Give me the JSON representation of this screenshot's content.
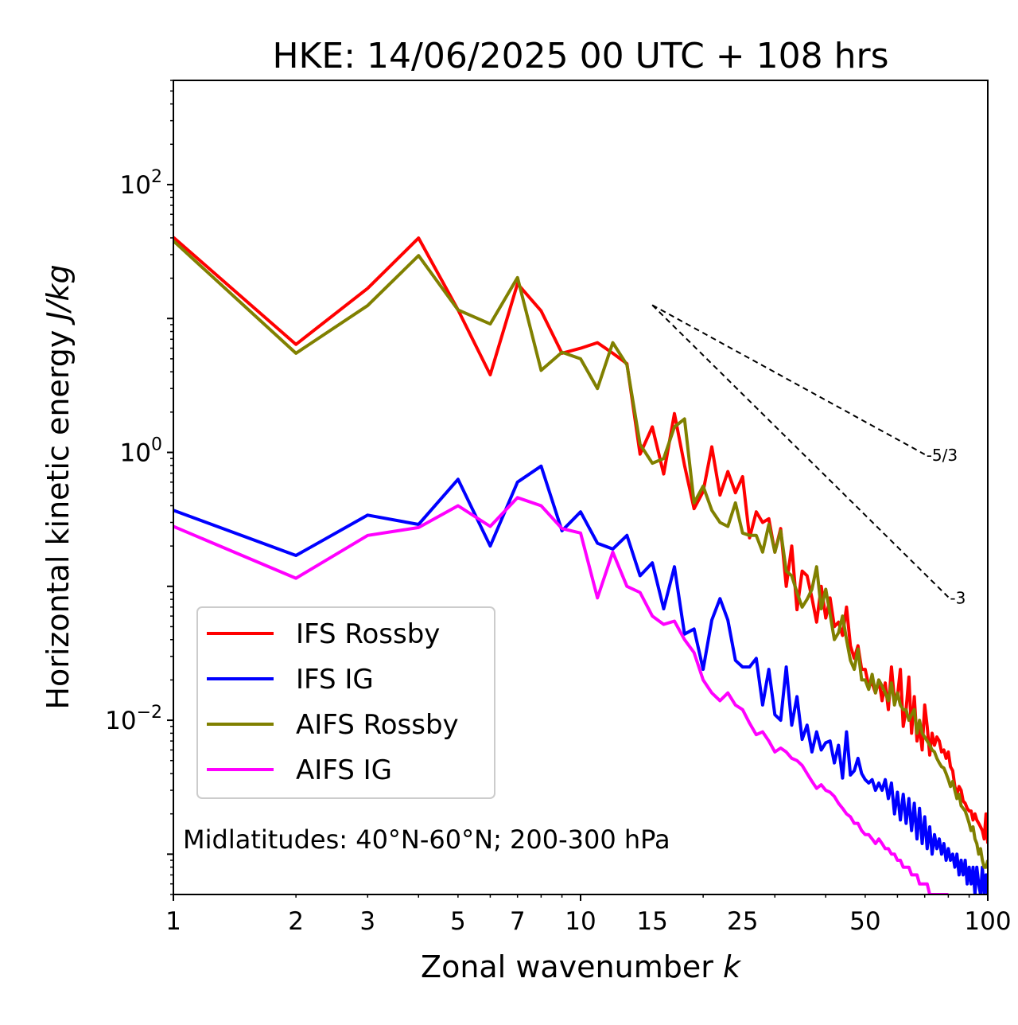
{
  "chart_data": {
    "type": "line",
    "title": "HKE: 14/06/2025 00 UTC + 108 hrs",
    "xlabel": "Zonal wavenumber",
    "xlabel_var": "k",
    "ylabel": "Horizontal kinetic energy",
    "ylabel_units": "J/kg",
    "xscale": "log",
    "yscale": "log",
    "xlim": [
      1,
      100
    ],
    "ylim": [
      0.0005,
      600
    ],
    "x_ticks": [
      1,
      2,
      3,
      5,
      7,
      10,
      15,
      25,
      50,
      100
    ],
    "x_tick_labels": [
      "1",
      "2",
      "3",
      "5",
      "7",
      "10",
      "15",
      "25",
      "50",
      "100"
    ],
    "y_ticks": [
      {
        "value": 100,
        "base": "10",
        "exp": "2"
      },
      {
        "value": 1,
        "base": "10",
        "exp": "0"
      },
      {
        "value": 0.01,
        "base": "10",
        "exp": "−2"
      }
    ],
    "grid": false,
    "legend_position": "lower-left",
    "annotation": "Midlatitudes: 40°N-60°N; 200-300 hPa",
    "reference_slopes": [
      {
        "label": "-5/3",
        "slope": -1.6667,
        "x": [
          15,
          70
        ],
        "y_start": 12.6
      },
      {
        "label": "-3",
        "slope": -3,
        "x": [
          15,
          80
        ],
        "y_start": 12.6
      }
    ],
    "series": [
      {
        "name": "IFS Rossby",
        "color": "#ff0000",
        "x": [
          1,
          2,
          3,
          4,
          5,
          6,
          7,
          8,
          9,
          10,
          11,
          12,
          13,
          14,
          15,
          16,
          17,
          18,
          19,
          20,
          21,
          22,
          23,
          24,
          25,
          26,
          27,
          28,
          29,
          30,
          31,
          32,
          33,
          34,
          35,
          36,
          37,
          38,
          39,
          40,
          41,
          42,
          43,
          44,
          45,
          46,
          47,
          48,
          49,
          50,
          51,
          52,
          53,
          54,
          55,
          56,
          57,
          58,
          59,
          60,
          61,
          62,
          63,
          64,
          65,
          66,
          67,
          68,
          69,
          70,
          71,
          72,
          73,
          74,
          75,
          76,
          77,
          78,
          79,
          80,
          81,
          82,
          83,
          84,
          85,
          86,
          87,
          88,
          89,
          90,
          91,
          92,
          93,
          94,
          95,
          96,
          97,
          98,
          99,
          100
        ],
        "y": [
          40.4,
          6.4,
          16.8,
          39.9,
          11.6,
          3.8,
          18.2,
          11.4,
          5.5,
          6.0,
          6.6,
          5.5,
          4.6,
          0.97,
          1.55,
          0.69,
          1.95,
          0.8,
          0.38,
          0.51,
          1.1,
          0.48,
          0.72,
          0.5,
          0.66,
          0.23,
          0.36,
          0.3,
          0.32,
          0.18,
          0.27,
          0.1,
          0.2,
          0.067,
          0.13,
          0.12,
          0.082,
          0.054,
          0.1,
          0.058,
          0.082,
          0.05,
          0.054,
          0.043,
          0.07,
          0.036,
          0.029,
          0.036,
          0.024,
          0.024,
          0.018,
          0.019,
          0.016,
          0.02,
          0.014,
          0.019,
          0.012,
          0.025,
          0.014,
          0.015,
          0.024,
          0.009,
          0.012,
          0.021,
          0.008,
          0.015,
          0.007,
          0.009,
          0.006,
          0.013,
          0.009,
          0.0055,
          0.008,
          0.0065,
          0.0075,
          0.007,
          0.0058,
          0.006,
          0.0052,
          0.0058,
          0.0045,
          0.0042,
          0.0032,
          0.0028,
          0.0032,
          0.003,
          0.0025,
          0.0024,
          0.0022,
          0.0021,
          0.0021,
          0.0018,
          0.002,
          0.0018,
          0.0017,
          0.0016,
          0.0015,
          0.0013,
          0.002,
          0.0012
        ]
      },
      {
        "name": "IFS IG",
        "color": "#0000ff",
        "x": [
          1,
          2,
          3,
          4,
          5,
          6,
          7,
          8,
          9,
          10,
          11,
          12,
          13,
          14,
          15,
          16,
          17,
          18,
          19,
          20,
          21,
          22,
          23,
          24,
          25,
          26,
          27,
          28,
          29,
          30,
          31,
          32,
          33,
          34,
          35,
          36,
          37,
          38,
          39,
          40,
          41,
          42,
          43,
          44,
          45,
          46,
          47,
          48,
          49,
          50,
          51,
          52,
          53,
          54,
          55,
          56,
          57,
          58,
          59,
          60,
          61,
          62,
          63,
          64,
          65,
          66,
          67,
          68,
          69,
          70,
          71,
          72,
          73,
          74,
          75,
          76,
          77,
          78,
          79,
          80,
          81,
          82,
          83,
          84,
          85,
          86,
          87,
          88,
          89,
          90,
          91,
          92,
          93,
          94,
          95,
          96,
          97,
          98,
          99,
          100
        ],
        "y": [
          0.37,
          0.17,
          0.34,
          0.29,
          0.63,
          0.2,
          0.6,
          0.79,
          0.26,
          0.36,
          0.21,
          0.19,
          0.24,
          0.12,
          0.15,
          0.068,
          0.14,
          0.044,
          0.048,
          0.024,
          0.056,
          0.081,
          0.056,
          0.028,
          0.025,
          0.025,
          0.029,
          0.013,
          0.024,
          0.011,
          0.01,
          0.025,
          0.0092,
          0.015,
          0.0072,
          0.0092,
          0.0058,
          0.0082,
          0.006,
          0.0068,
          0.007,
          0.0048,
          0.0065,
          0.0037,
          0.0082,
          0.0039,
          0.0042,
          0.0052,
          0.004,
          0.0036,
          0.0034,
          0.0036,
          0.003,
          0.0034,
          0.003,
          0.0036,
          0.0026,
          0.0034,
          0.002,
          0.0029,
          0.0018,
          0.0028,
          0.0017,
          0.0026,
          0.0015,
          0.0024,
          0.0013,
          0.0022,
          0.0012,
          0.0019,
          0.0011,
          0.0016,
          0.001,
          0.0014,
          0.0011,
          0.0013,
          0.001,
          0.0012,
          0.0009,
          0.0011,
          0.0009,
          0.001,
          0.0008,
          0.001,
          0.0007,
          0.0009,
          0.0007,
          0.0009,
          0.0006,
          0.0008,
          0.0006,
          0.0008,
          0.0005,
          0.0008,
          0.0006,
          0.0005,
          0.0008,
          0.0005,
          0.0007,
          0.0005
        ]
      },
      {
        "name": "AIFS Rossby",
        "color": "#808000",
        "x": [
          1,
          2,
          3,
          4,
          5,
          6,
          7,
          8,
          9,
          10,
          11,
          12,
          13,
          14,
          15,
          16,
          17,
          18,
          19,
          20,
          21,
          22,
          23,
          24,
          25,
          26,
          27,
          28,
          29,
          30,
          31,
          32,
          33,
          34,
          35,
          36,
          37,
          38,
          39,
          40,
          41,
          42,
          43,
          44,
          45,
          46,
          47,
          48,
          49,
          50,
          51,
          52,
          53,
          54,
          55,
          56,
          57,
          58,
          59,
          60,
          61,
          62,
          63,
          64,
          65,
          66,
          67,
          68,
          69,
          70,
          71,
          72,
          73,
          74,
          75,
          76,
          77,
          78,
          79,
          80,
          81,
          82,
          83,
          84,
          85,
          86,
          87,
          88,
          89,
          90,
          91,
          92,
          93,
          94,
          95,
          96,
          97,
          98,
          99,
          100
        ],
        "y": [
          38.0,
          5.5,
          12.5,
          29.5,
          11.6,
          9.1,
          20.2,
          4.1,
          5.6,
          5.0,
          3.0,
          6.6,
          4.5,
          1.15,
          0.83,
          0.9,
          1.55,
          1.78,
          0.42,
          0.56,
          0.37,
          0.3,
          0.28,
          0.42,
          0.25,
          0.24,
          0.24,
          0.18,
          0.29,
          0.18,
          0.26,
          0.13,
          0.12,
          0.09,
          0.07,
          0.08,
          0.095,
          0.14,
          0.068,
          0.095,
          0.062,
          0.04,
          0.045,
          0.06,
          0.04,
          0.028,
          0.024,
          0.034,
          0.02,
          0.02,
          0.017,
          0.022,
          0.016,
          0.02,
          0.018,
          0.016,
          0.014,
          0.019,
          0.013,
          0.016,
          0.013,
          0.012,
          0.012,
          0.01,
          0.011,
          0.012,
          0.008,
          0.01,
          0.008,
          0.0075,
          0.007,
          0.0065,
          0.006,
          0.0058,
          0.0052,
          0.0048,
          0.0045,
          0.0044,
          0.004,
          0.0036,
          0.0032,
          0.0035,
          0.003,
          0.0026,
          0.0028,
          0.0023,
          0.0022,
          0.0021,
          0.0019,
          0.0017,
          0.0015,
          0.0016,
          0.0013,
          0.0012,
          0.001,
          0.0011,
          0.0009,
          0.0008,
          0.0008,
          0.0009
        ]
      },
      {
        "name": "AIFS IG",
        "color": "#ff00ff",
        "x": [
          1,
          2,
          3,
          4,
          5,
          6,
          7,
          8,
          9,
          10,
          11,
          12,
          13,
          14,
          15,
          16,
          17,
          18,
          19,
          20,
          21,
          22,
          23,
          24,
          25,
          26,
          27,
          28,
          29,
          30,
          31,
          32,
          33,
          34,
          35,
          36,
          37,
          38,
          39,
          40,
          41,
          42,
          43,
          44,
          45,
          46,
          47,
          48,
          49,
          50,
          51,
          52,
          53,
          54,
          55,
          56,
          57,
          58,
          59,
          60,
          61,
          62,
          63,
          64,
          65,
          66,
          67,
          68,
          69,
          70,
          71,
          72,
          73,
          74,
          75,
          76,
          77,
          78,
          79,
          80
        ],
        "y": [
          0.28,
          0.115,
          0.24,
          0.275,
          0.4,
          0.28,
          0.46,
          0.4,
          0.27,
          0.25,
          0.082,
          0.18,
          0.1,
          0.09,
          0.06,
          0.052,
          0.055,
          0.04,
          0.032,
          0.02,
          0.016,
          0.014,
          0.016,
          0.013,
          0.012,
          0.0095,
          0.0078,
          0.0082,
          0.007,
          0.0058,
          0.0062,
          0.0058,
          0.0052,
          0.005,
          0.0046,
          0.004,
          0.0035,
          0.0031,
          0.0033,
          0.003,
          0.0029,
          0.0027,
          0.0024,
          0.0022,
          0.002,
          0.0019,
          0.0017,
          0.0017,
          0.0015,
          0.0014,
          0.0014,
          0.0013,
          0.0012,
          0.0013,
          0.0012,
          0.0011,
          0.0011,
          0.001,
          0.001,
          0.0009,
          0.0009,
          0.0008,
          0.0008,
          0.0008,
          0.0007,
          0.0007,
          0.0007,
          0.0006,
          0.0006,
          0.0006,
          0.0006,
          0.0005,
          0.0005,
          0.0005,
          0.0005,
          0.0005,
          0.0005,
          0.0005,
          0.0005,
          0.0005
        ]
      }
    ]
  }
}
